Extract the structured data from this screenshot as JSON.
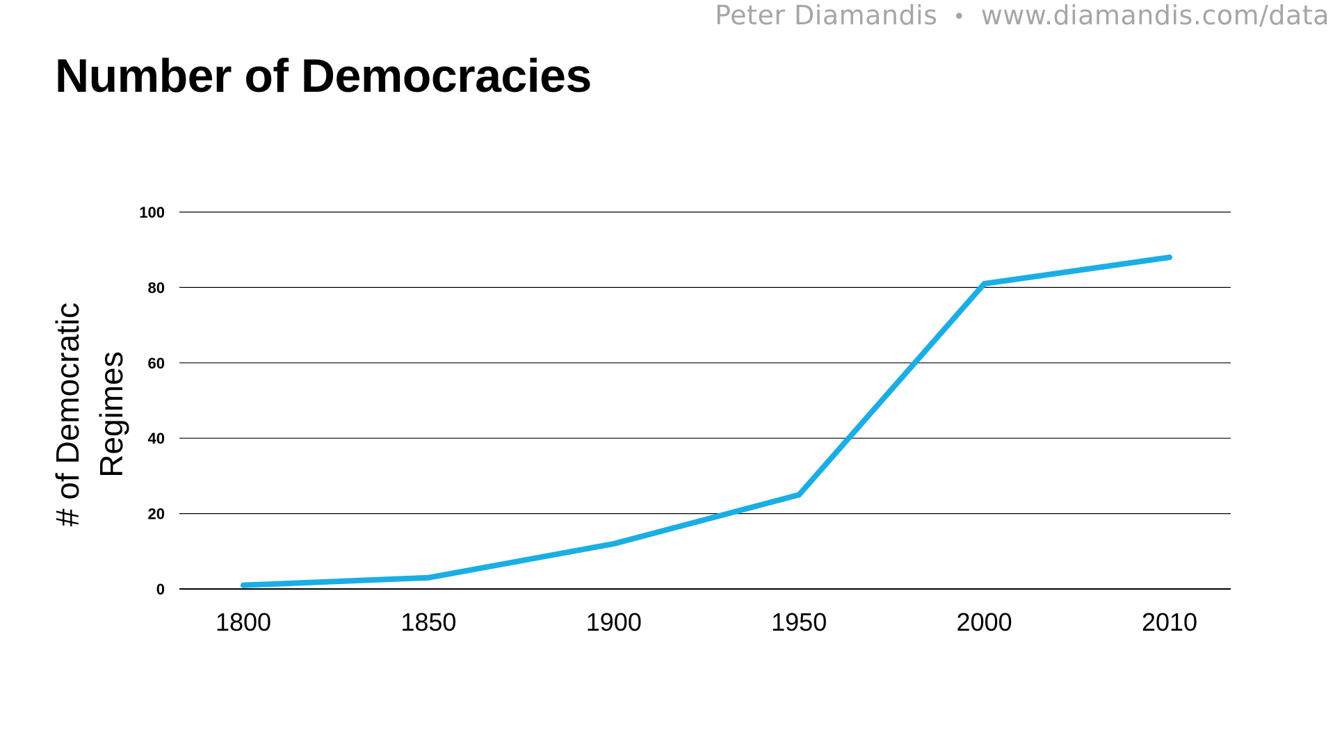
{
  "header": {
    "author": "Peter Diamandis",
    "separator": "•",
    "url": "www.diamandis.com/data"
  },
  "chart_data": {
    "type": "line",
    "title": "Number of Democracies",
    "xlabel": "",
    "ylabel_lines": [
      "# of Democratic",
      "Regimes"
    ],
    "categories": [
      "1800",
      "1850",
      "1900",
      "1950",
      "2000",
      "2010"
    ],
    "series": [
      {
        "name": "# of Democratic Regimes",
        "color": "#1aaee5",
        "values": [
          1,
          3,
          12,
          25,
          81,
          88
        ]
      }
    ],
    "ylim": [
      0,
      100
    ],
    "yticks": [
      0,
      20,
      40,
      60,
      80,
      100
    ],
    "grid": true,
    "legend": "none"
  }
}
